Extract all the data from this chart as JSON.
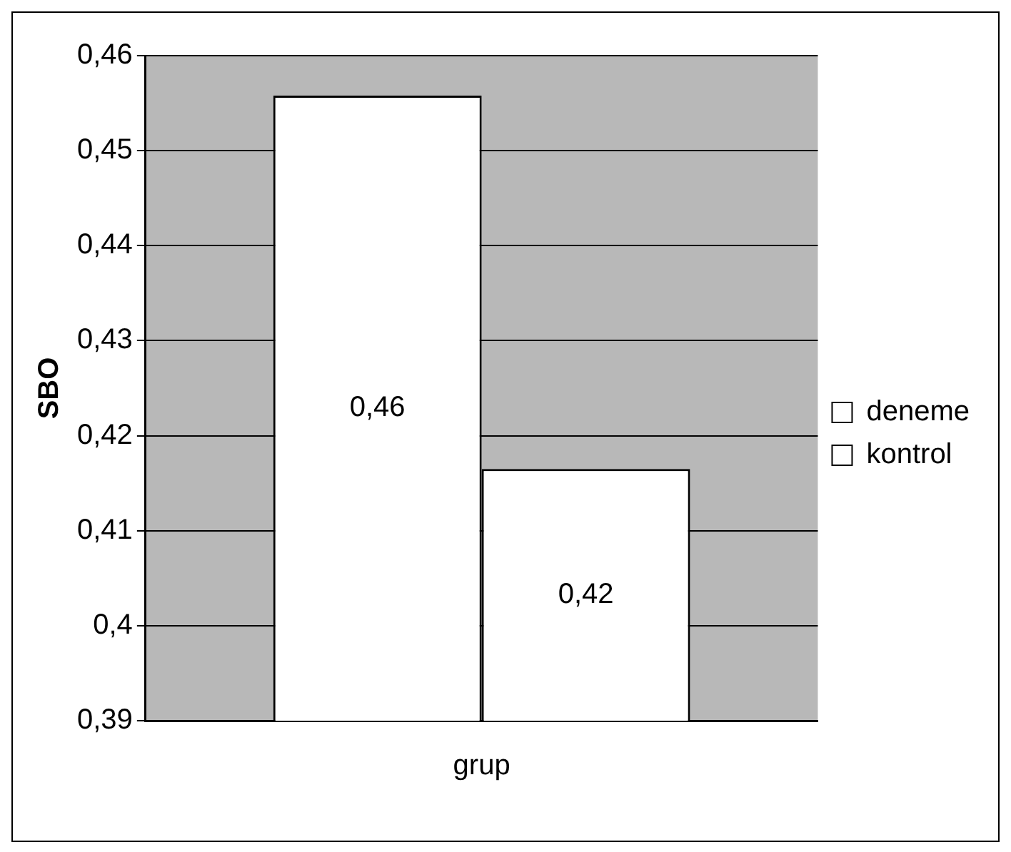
{
  "chart_data": {
    "type": "bar",
    "ylabel": "SBO",
    "categories": [
      "grup"
    ],
    "series": [
      {
        "name": "deneme",
        "color": "#ffffff",
        "values": [
          0.4558
        ],
        "value_labels": [
          "0,46"
        ]
      },
      {
        "name": "kontrol",
        "color": "#ffffff",
        "values": [
          0.4165
        ],
        "value_labels": [
          "0,42"
        ]
      }
    ],
    "ylim": [
      0.39,
      0.46
    ],
    "yticks": [
      {
        "value": 0.39,
        "label": "0,39"
      },
      {
        "value": 0.4,
        "label": "0,4"
      },
      {
        "value": 0.41,
        "label": "0,41"
      },
      {
        "value": 0.42,
        "label": "0,42"
      },
      {
        "value": 0.43,
        "label": "0,43"
      },
      {
        "value": 0.44,
        "label": "0,44"
      },
      {
        "value": 0.45,
        "label": "0,45"
      },
      {
        "value": 0.46,
        "label": "0,46"
      }
    ],
    "grid": "y",
    "legend": "right"
  }
}
